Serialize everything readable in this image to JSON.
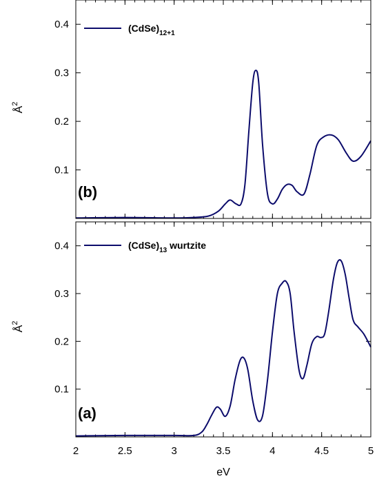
{
  "chart_data": [
    {
      "panel": "b",
      "type": "line",
      "panel_label": "(b)",
      "legend_base": "(CdSe)",
      "legend_sub": "12+1",
      "legend_suffix": "",
      "xlabel": "",
      "ylabel": "Å2",
      "xlim": [
        2,
        5
      ],
      "ylim": [
        0,
        0.45
      ],
      "y_ticks": [
        0.1,
        0.2,
        0.3,
        0.4
      ],
      "y_tick_labels": [
        "0.1",
        "0.2",
        "0.3",
        "0.4"
      ],
      "color": "#0b0b6b",
      "series": [
        {
          "x": [
            2.0,
            2.5,
            3.0,
            3.2,
            3.35,
            3.45,
            3.52,
            3.57,
            3.63,
            3.68,
            3.72,
            3.76,
            3.8,
            3.83,
            3.86,
            3.9,
            3.95,
            4.0,
            4.05,
            4.1,
            4.15,
            4.2,
            4.25,
            4.32,
            4.38,
            4.45,
            4.52,
            4.6,
            4.67,
            4.75,
            4.82,
            4.9,
            5.0
          ],
          "y": [
            0.001,
            0.002,
            0.001,
            0.002,
            0.005,
            0.015,
            0.03,
            0.038,
            0.03,
            0.03,
            0.07,
            0.18,
            0.28,
            0.305,
            0.28,
            0.15,
            0.05,
            0.03,
            0.04,
            0.06,
            0.07,
            0.068,
            0.055,
            0.05,
            0.09,
            0.15,
            0.168,
            0.172,
            0.162,
            0.135,
            0.118,
            0.128,
            0.16
          ]
        }
      ]
    },
    {
      "panel": "a",
      "type": "line",
      "panel_label": "(a)",
      "legend_base": "(CdSe)",
      "legend_sub": "13",
      "legend_suffix": " wurtzite",
      "xlabel": "eV",
      "ylabel": "Å2",
      "xlim": [
        2,
        5
      ],
      "ylim": [
        0,
        0.45
      ],
      "x_ticks": [
        2,
        2.5,
        3,
        3.5,
        4,
        4.5,
        5
      ],
      "x_tick_labels": [
        "2",
        "2.5",
        "3",
        "3.5",
        "4",
        "4.5",
        "5"
      ],
      "y_ticks": [
        0.1,
        0.2,
        0.3,
        0.4
      ],
      "y_tick_labels": [
        "0.1",
        "0.2",
        "0.3",
        "0.4"
      ],
      "color": "#0b0b6b",
      "series": [
        {
          "x": [
            2.0,
            2.5,
            3.0,
            3.2,
            3.28,
            3.33,
            3.38,
            3.43,
            3.47,
            3.52,
            3.57,
            3.62,
            3.67,
            3.71,
            3.75,
            3.8,
            3.85,
            3.9,
            3.95,
            4.0,
            4.05,
            4.1,
            4.14,
            4.18,
            4.22,
            4.27,
            4.31,
            4.35,
            4.4,
            4.45,
            4.49,
            4.53,
            4.57,
            4.62,
            4.66,
            4.7,
            4.74,
            4.78,
            4.82,
            4.87,
            4.93,
            5.0
          ],
          "y": [
            0.002,
            0.003,
            0.003,
            0.003,
            0.01,
            0.025,
            0.045,
            0.062,
            0.058,
            0.043,
            0.065,
            0.12,
            0.16,
            0.165,
            0.14,
            0.075,
            0.035,
            0.045,
            0.12,
            0.22,
            0.3,
            0.322,
            0.325,
            0.3,
            0.22,
            0.14,
            0.122,
            0.15,
            0.195,
            0.21,
            0.208,
            0.215,
            0.26,
            0.33,
            0.365,
            0.368,
            0.34,
            0.29,
            0.245,
            0.23,
            0.215,
            0.188
          ]
        }
      ]
    }
  ]
}
